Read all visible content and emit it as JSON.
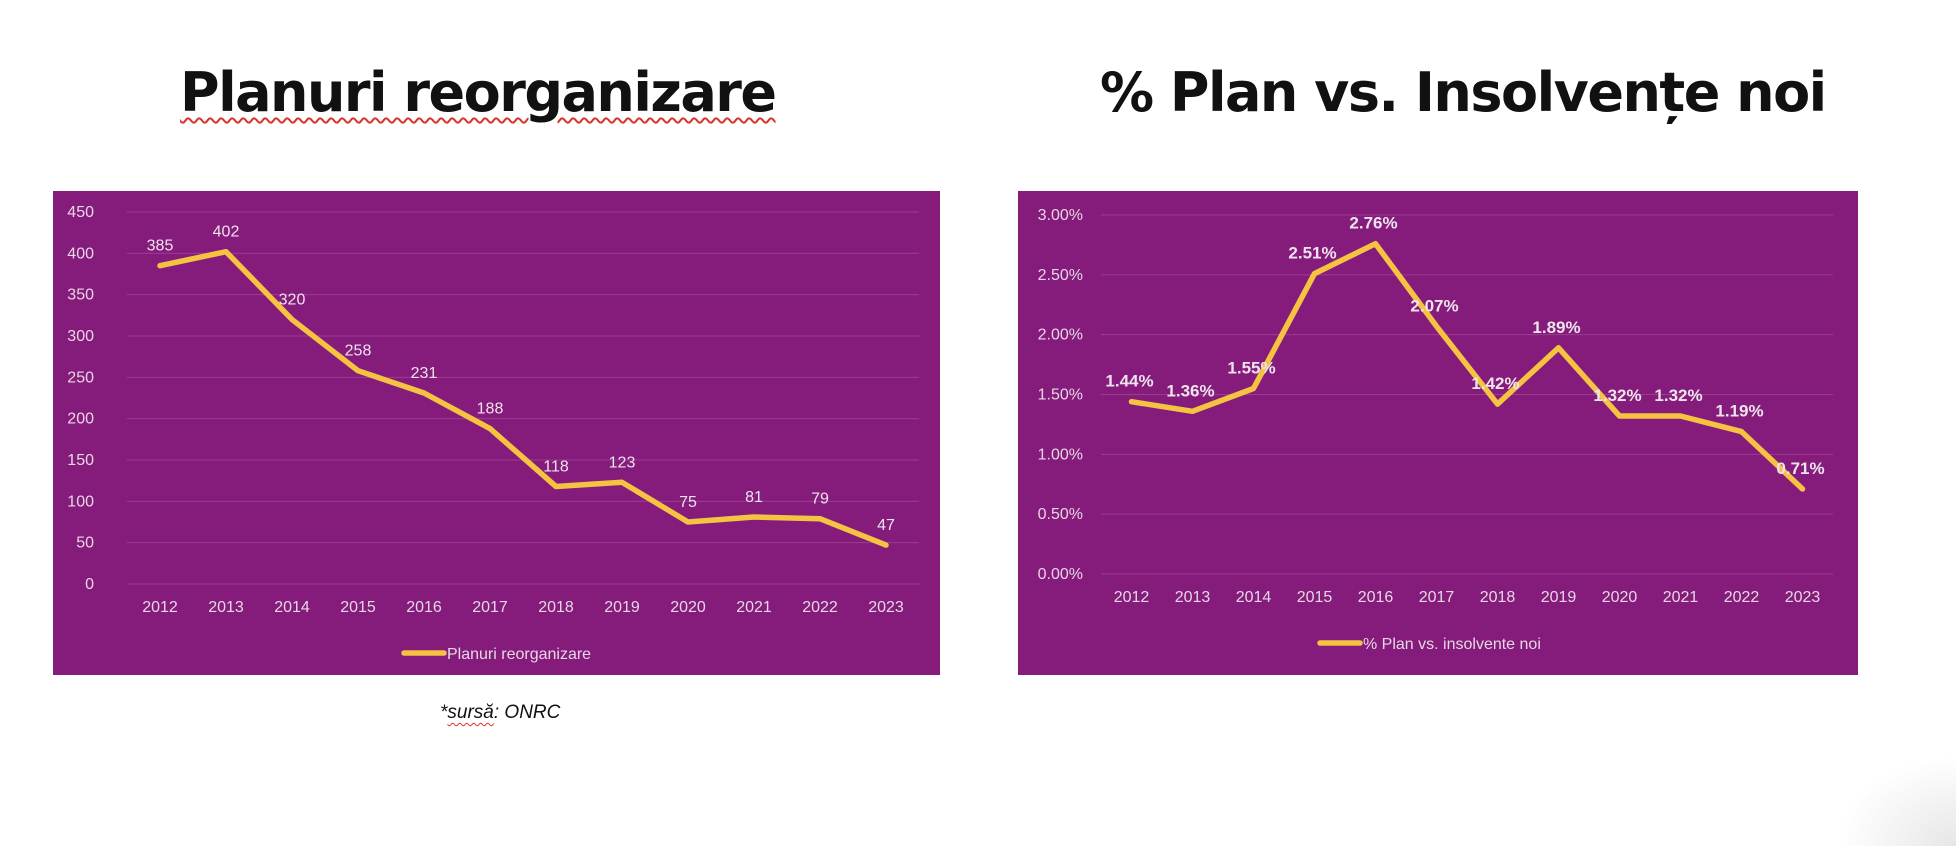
{
  "slide": {
    "title_left": "Planuri reorganizare",
    "title_right": "% Plan vs. Insolvențe noi",
    "source_prefix": "*",
    "source_word": "sursă",
    "source_rest": ": ONRC"
  },
  "colors": {
    "panel_background": "#851c7b",
    "line": "#f5c242",
    "gridline": "#9a3d91",
    "axis_text": "#e8d6e6",
    "data_label": "#efe3ee"
  },
  "chart_data": [
    {
      "type": "line",
      "title": "",
      "xlabel": "",
      "ylabel": "",
      "categories": [
        "2012",
        "2013",
        "2014",
        "2015",
        "2016",
        "2017",
        "2018",
        "2019",
        "2020",
        "2021",
        "2022",
        "2023"
      ],
      "series": [
        {
          "name": "Planuri reorganizare",
          "values": [
            385,
            402,
            320,
            258,
            231,
            188,
            118,
            123,
            75,
            81,
            79,
            47
          ],
          "labels": [
            "385",
            "402",
            "320",
            "258",
            "231",
            "188",
            "118",
            "123",
            "75",
            "81",
            "79",
            "47"
          ]
        }
      ],
      "ylim": [
        0,
        450
      ],
      "yticks": [
        0,
        50,
        100,
        150,
        200,
        250,
        300,
        350,
        400,
        450
      ],
      "ytick_labels": [
        "0",
        "50",
        "100",
        "150",
        "200",
        "250",
        "300",
        "350",
        "400",
        "450"
      ],
      "grid": true,
      "legend": "bottom",
      "data_labels_bold": false
    },
    {
      "type": "line",
      "title": "",
      "xlabel": "",
      "ylabel": "",
      "categories": [
        "2012",
        "2013",
        "2014",
        "2015",
        "2016",
        "2017",
        "2018",
        "2019",
        "2020",
        "2021",
        "2022",
        "2023"
      ],
      "series": [
        {
          "name": "% Plan vs. insolvente noi",
          "values": [
            1.44,
            1.36,
            1.55,
            2.51,
            2.76,
            2.07,
            1.42,
            1.89,
            1.32,
            1.32,
            1.19,
            0.71
          ],
          "labels": [
            "1.44%",
            "1.36%",
            "1.55%",
            "2.51%",
            "2.76%",
            "2.07%",
            "1.42%",
            "1.89%",
            "1.32%",
            "1.32%",
            "1.19%",
            "0.71%"
          ]
        }
      ],
      "ylim": [
        0,
        3.0
      ],
      "yticks": [
        0,
        0.5,
        1.0,
        1.5,
        2.0,
        2.5,
        3.0
      ],
      "ytick_labels": [
        "0.00%",
        "0.50%",
        "1.00%",
        "1.50%",
        "2.00%",
        "2.50%",
        "3.00%"
      ],
      "grid": true,
      "legend": "bottom",
      "data_labels_bold": true
    }
  ]
}
